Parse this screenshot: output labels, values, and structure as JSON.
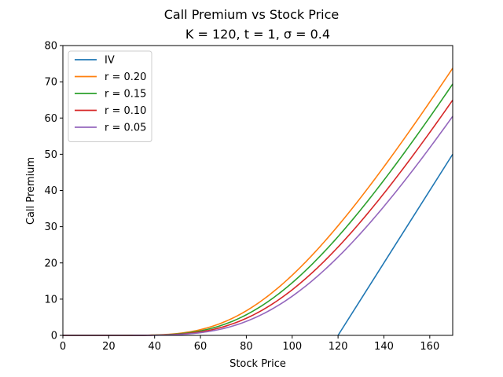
{
  "chart_data": {
    "type": "line",
    "title": "Call Premium vs Stock Price",
    "subtitle": "K = 120, t = 1, σ = 0.4",
    "xlabel": "Stock Price",
    "ylabel": "Call Premium",
    "xlim": [
      0,
      170
    ],
    "ylim": [
      0,
      80
    ],
    "xticks": [
      0,
      20,
      40,
      60,
      80,
      100,
      120,
      140,
      160
    ],
    "yticks": [
      0,
      10,
      20,
      30,
      40,
      50,
      60,
      70,
      80
    ],
    "grid": false,
    "legend_position": "top-left",
    "strike": 120,
    "sigma": 0.4,
    "t": 1,
    "series": [
      {
        "name": "IV",
        "color": "#1f77b4",
        "x": [
          0,
          120,
          170
        ],
        "values": [
          0,
          0,
          50
        ]
      },
      {
        "name": "r = 0.20",
        "color": "#ff7f0e",
        "rate": 0.2,
        "x": [
          0,
          20,
          40,
          60,
          80,
          100,
          120,
          140,
          160,
          170
        ],
        "values": [
          0,
          0,
          0.3,
          1.7,
          6.6,
          15.8,
          30.4,
          46.7,
          64.1,
          73.8
        ]
      },
      {
        "name": "r = 0.15",
        "color": "#2ca02c",
        "rate": 0.15,
        "x": [
          0,
          20,
          40,
          60,
          80,
          100,
          120,
          140,
          160,
          170
        ],
        "values": [
          0,
          0,
          0.2,
          1.4,
          5.9,
          14.6,
          27.6,
          43.3,
          60.4,
          69.4
        ]
      },
      {
        "name": "r = 0.10",
        "color": "#d62728",
        "rate": 0.1,
        "x": [
          0,
          20,
          40,
          60,
          80,
          100,
          120,
          140,
          160,
          170
        ],
        "values": [
          0,
          0,
          0.2,
          1.3,
          5.2,
          13.1,
          25.1,
          39.9,
          56.1,
          65.0
        ]
      },
      {
        "name": "r = 0.05",
        "color": "#9467bd",
        "rate": 0.05,
        "x": [
          0,
          20,
          40,
          60,
          80,
          100,
          120,
          140,
          160,
          170
        ],
        "values": [
          0,
          0,
          0.1,
          1.1,
          4.5,
          11.7,
          22.4,
          36.7,
          51.8,
          60.5
        ]
      }
    ]
  }
}
